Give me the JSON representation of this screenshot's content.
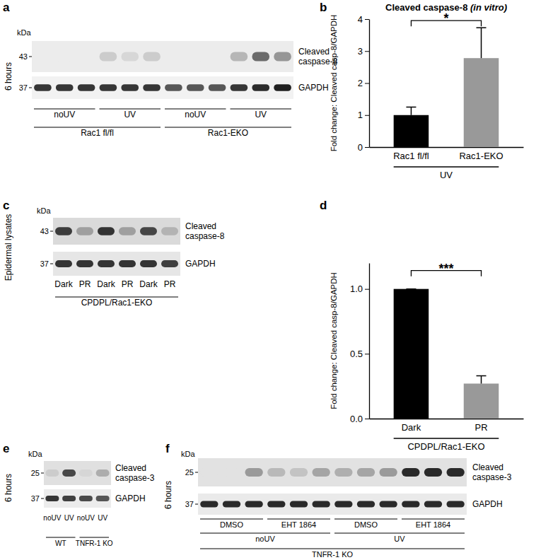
{
  "panels": [
    {
      "panel": "a",
      "kda_label": "kDa",
      "side_label": "6 hours",
      "rows": [
        {
          "name": "Cleaved caspase-8",
          "kda": 43,
          "intensity": [
            0,
            0,
            0,
            0.15,
            0.1,
            0.15,
            0,
            0,
            0,
            0.25,
            0.6,
            0.4
          ]
        },
        {
          "name": "GAPDH",
          "kda": 37,
          "intensity": [
            0.85,
            0.85,
            0.85,
            0.85,
            0.85,
            0.85,
            0.7,
            0.7,
            0.7,
            0.85,
            0.9,
            0.95
          ]
        }
      ],
      "lane_groups": [
        [
          {
            "text": "noUV",
            "lanes": 3
          },
          {
            "text": "UV",
            "lanes": 3
          },
          {
            "text": "noUV",
            "lanes": 3
          },
          {
            "text": "UV",
            "lanes": 3
          }
        ],
        [
          {
            "text": "Rac1 fl/fl",
            "lanes": 6
          },
          {
            "text": "Rac1-EKO",
            "lanes": 6
          }
        ]
      ]
    },
    {
      "panel": "c",
      "kda_label": "kDa",
      "side_label": "Epidermal lysates",
      "rows": [
        {
          "name": "Cleaved caspase-8",
          "kda": 43,
          "intensity": [
            0.8,
            0.3,
            0.85,
            0.3,
            0.75,
            0.2
          ]
        },
        {
          "name": "GAPDH",
          "kda": 37,
          "intensity": [
            0.85,
            0.85,
            0.85,
            0.85,
            0.85,
            0.8
          ]
        }
      ],
      "lane_groups": [
        [
          {
            "text": "Dark",
            "lanes": 1
          },
          {
            "text": "PR",
            "lanes": 1
          },
          {
            "text": "Dark",
            "lanes": 1
          },
          {
            "text": "PR",
            "lanes": 1
          },
          {
            "text": "Dark",
            "lanes": 1
          },
          {
            "text": "PR",
            "lanes": 1
          }
        ],
        [
          {
            "text": "CPDPL/Rac1-EKO",
            "lanes": 6
          }
        ]
      ]
    },
    {
      "panel": "e",
      "kda_label": "kDa",
      "side_label": "6 hours",
      "rows": [
        {
          "name": "Cleaved caspase-3",
          "kda": 25,
          "intensity": [
            0.1,
            0.75,
            0.05,
            0.25
          ]
        },
        {
          "name": "GAPDH",
          "kda": 37,
          "intensity": [
            0.85,
            0.8,
            0.75,
            0.7
          ]
        }
      ],
      "lane_groups": [
        [
          {
            "text": "noUV",
            "lanes": 1
          },
          {
            "text": "UV",
            "lanes": 1
          },
          {
            "text": "noUV",
            "lanes": 1
          },
          {
            "text": "UV",
            "lanes": 1
          }
        ],
        [
          {
            "text": "WT",
            "lanes": 2
          },
          {
            "text": "TNFR-1 KO",
            "lanes": 2
          }
        ]
      ]
    },
    {
      "panel": "f",
      "kda_label": "kDa",
      "side_label": "6 hours",
      "rows": [
        {
          "name": "Cleaved caspase-3",
          "kda": 25,
          "intensity": [
            0,
            0,
            0.35,
            0.2,
            0.15,
            0.3,
            0.25,
            0.3,
            0.35,
            0.9,
            0.9,
            0.9
          ]
        },
        {
          "name": "GAPDH",
          "kda": 37,
          "intensity": [
            0.9,
            0.9,
            0.9,
            0.9,
            0.9,
            0.9,
            0.9,
            0.9,
            0.9,
            0.9,
            0.9,
            0.9
          ]
        }
      ],
      "lane_groups": [
        [
          {
            "text": "DMSO",
            "lanes": 3
          },
          {
            "text": "EHT 1864",
            "lanes": 3
          },
          {
            "text": "DMSO",
            "lanes": 3
          },
          {
            "text": "EHT 1864",
            "lanes": 3
          }
        ],
        [
          {
            "text": "noUV",
            "lanes": 6
          },
          {
            "text": "UV",
            "lanes": 6
          }
        ],
        [
          {
            "text": "TNFR-1 KO",
            "lanes": 12
          }
        ]
      ]
    }
  ],
  "chart_data": [
    {
      "panel": "b",
      "type": "bar",
      "title": "Cleaved caspase-8 (in vitro)",
      "ylabel": "Fold change: Cleaved casp-8/GAPDH",
      "xlabel": "UV",
      "categories": [
        "Rac1 fl/fl",
        "Rac1-EKO"
      ],
      "values": [
        1.0,
        2.78
      ],
      "errors": [
        0.25,
        0.95
      ],
      "colors": [
        "#000000",
        "#999999"
      ],
      "ylim": [
        0,
        4
      ],
      "yticks": [
        0,
        1,
        2,
        3,
        4
      ],
      "annotations": [
        "*"
      ]
    },
    {
      "panel": "d",
      "type": "bar",
      "ylabel": "Fold change: Cleaved casp-8/GAPDH",
      "xlabel": "CPDPL/Rac1-EKO",
      "categories": [
        "Dark",
        "PR"
      ],
      "values": [
        1.0,
        0.27
      ],
      "errors": [
        0,
        0.06
      ],
      "colors": [
        "#000000",
        "#999999"
      ],
      "ylim": [
        0,
        1.2
      ],
      "yticks": [
        {
          "value": 0,
          "label": "0.0"
        },
        {
          "value": 0.5,
          "label": "0.5"
        },
        {
          "value": 1,
          "label": "1.0"
        }
      ],
      "annotations": [
        "***"
      ]
    }
  ]
}
